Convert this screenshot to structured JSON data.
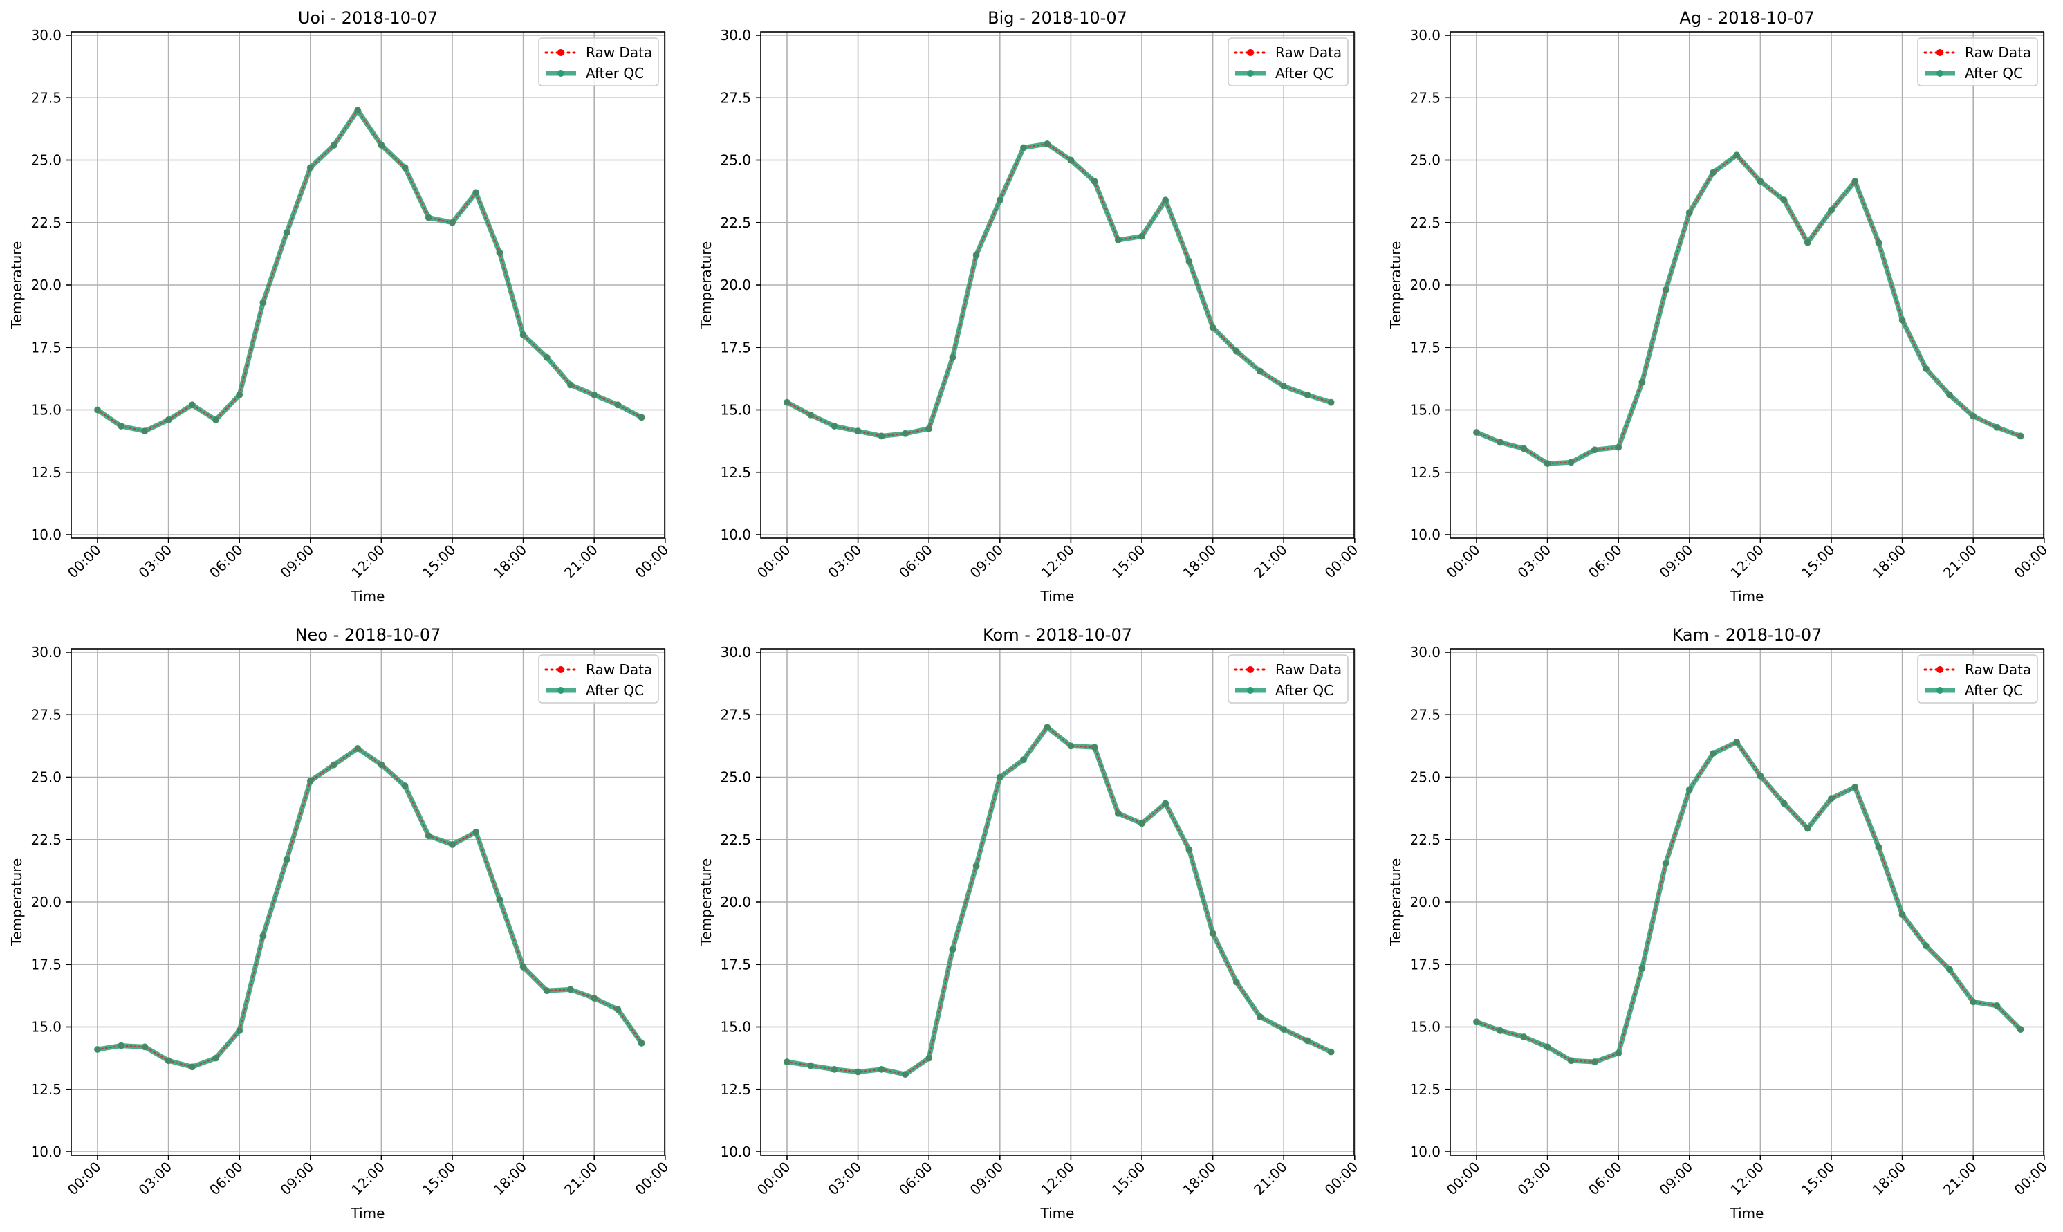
{
  "colors": {
    "raw": "#ff0000",
    "qc": "#2a9d76",
    "grid": "#b0b0b0",
    "legend_border": "#cccccc"
  },
  "legend": {
    "raw_label": "Raw Data",
    "qc_label": "After QC"
  },
  "chart_data": [
    {
      "type": "line",
      "title": "Uoi - 2018-10-07",
      "xlabel": "Time",
      "ylabel": "Temperature",
      "ylim": [
        10.0,
        30.0
      ],
      "yticks": [
        "10.0",
        "12.5",
        "15.0",
        "17.5",
        "20.0",
        "22.5",
        "25.0",
        "27.5",
        "30.0"
      ],
      "xticks": [
        "00:00",
        "03:00",
        "06:00",
        "09:00",
        "12:00",
        "15:00",
        "18:00",
        "21:00",
        "00:00"
      ],
      "grid": true,
      "legend_position": "upper right",
      "x": [
        "00:00",
        "01:00",
        "02:00",
        "03:00",
        "04:00",
        "05:00",
        "06:00",
        "07:00",
        "08:00",
        "09:00",
        "10:00",
        "11:00",
        "12:00",
        "13:00",
        "14:00",
        "15:00",
        "16:00",
        "17:00",
        "18:00",
        "19:00",
        "20:00",
        "21:00",
        "22:00",
        "23:00"
      ],
      "series": [
        {
          "name": "Raw Data",
          "values": [
            15.0,
            14.35,
            14.15,
            14.6,
            15.2,
            14.6,
            15.6,
            19.3,
            22.1,
            24.7,
            25.6,
            27.0,
            25.6,
            24.7,
            22.7,
            22.5,
            23.7,
            21.3,
            18.0,
            17.1,
            16.0,
            15.6,
            15.2,
            14.7
          ]
        },
        {
          "name": "After QC",
          "values": [
            15.0,
            14.35,
            14.15,
            14.6,
            15.2,
            14.6,
            15.6,
            19.3,
            22.1,
            24.7,
            25.6,
            27.0,
            25.6,
            24.7,
            22.7,
            22.5,
            23.7,
            21.3,
            18.0,
            17.1,
            16.0,
            15.6,
            15.2,
            14.7
          ]
        }
      ]
    },
    {
      "type": "line",
      "title": "Big - 2018-10-07",
      "xlabel": "Time",
      "ylabel": "Temperature",
      "ylim": [
        10.0,
        30.0
      ],
      "yticks": [
        "10.0",
        "12.5",
        "15.0",
        "17.5",
        "20.0",
        "22.5",
        "25.0",
        "27.5",
        "30.0"
      ],
      "xticks": [
        "00:00",
        "03:00",
        "06:00",
        "09:00",
        "12:00",
        "15:00",
        "18:00",
        "21:00",
        "00:00"
      ],
      "grid": true,
      "legend_position": "upper right",
      "x": [
        "00:00",
        "01:00",
        "02:00",
        "03:00",
        "04:00",
        "05:00",
        "06:00",
        "07:00",
        "08:00",
        "09:00",
        "10:00",
        "11:00",
        "12:00",
        "13:00",
        "14:00",
        "15:00",
        "16:00",
        "17:00",
        "18:00",
        "19:00",
        "20:00",
        "21:00",
        "22:00",
        "23:00"
      ],
      "series": [
        {
          "name": "Raw Data",
          "values": [
            15.3,
            14.8,
            14.35,
            14.15,
            13.95,
            14.05,
            14.25,
            17.1,
            21.2,
            23.4,
            25.5,
            25.65,
            25.0,
            24.15,
            21.8,
            21.95,
            23.4,
            20.95,
            18.3,
            17.35,
            16.55,
            15.95,
            15.6,
            15.3
          ]
        },
        {
          "name": "After QC",
          "values": [
            15.3,
            14.8,
            14.35,
            14.15,
            13.95,
            14.05,
            14.25,
            17.1,
            21.2,
            23.4,
            25.5,
            25.65,
            25.0,
            24.15,
            21.8,
            21.95,
            23.4,
            20.95,
            18.3,
            17.35,
            16.55,
            15.95,
            15.6,
            15.3
          ]
        }
      ]
    },
    {
      "type": "line",
      "title": "Ag - 2018-10-07",
      "xlabel": "Time",
      "ylabel": "Temperature",
      "ylim": [
        10.0,
        30.0
      ],
      "yticks": [
        "10.0",
        "12.5",
        "15.0",
        "17.5",
        "20.0",
        "22.5",
        "25.0",
        "27.5",
        "30.0"
      ],
      "xticks": [
        "00:00",
        "03:00",
        "06:00",
        "09:00",
        "12:00",
        "15:00",
        "18:00",
        "21:00",
        "00:00"
      ],
      "grid": true,
      "legend_position": "upper right",
      "x": [
        "00:00",
        "01:00",
        "02:00",
        "03:00",
        "04:00",
        "05:00",
        "06:00",
        "07:00",
        "08:00",
        "09:00",
        "10:00",
        "11:00",
        "12:00",
        "13:00",
        "14:00",
        "15:00",
        "16:00",
        "17:00",
        "18:00",
        "19:00",
        "20:00",
        "21:00",
        "22:00",
        "23:00"
      ],
      "series": [
        {
          "name": "Raw Data",
          "values": [
            14.1,
            13.7,
            13.45,
            12.85,
            12.9,
            13.4,
            13.5,
            16.1,
            19.8,
            22.9,
            24.5,
            25.2,
            24.15,
            23.4,
            21.7,
            23.0,
            24.15,
            21.7,
            18.6,
            16.65,
            15.6,
            14.75,
            14.3,
            13.95
          ]
        },
        {
          "name": "After QC",
          "values": [
            14.1,
            13.7,
            13.45,
            12.85,
            12.9,
            13.4,
            13.5,
            16.1,
            19.8,
            22.9,
            24.5,
            25.2,
            24.15,
            23.4,
            21.7,
            23.0,
            24.15,
            21.7,
            18.6,
            16.65,
            15.6,
            14.75,
            14.3,
            13.95
          ]
        }
      ]
    },
    {
      "type": "line",
      "title": "Neo - 2018-10-07",
      "xlabel": "Time",
      "ylabel": "Temperature",
      "ylim": [
        10.0,
        30.0
      ],
      "yticks": [
        "10.0",
        "12.5",
        "15.0",
        "17.5",
        "20.0",
        "22.5",
        "25.0",
        "27.5",
        "30.0"
      ],
      "xticks": [
        "00:00",
        "03:00",
        "06:00",
        "09:00",
        "12:00",
        "15:00",
        "18:00",
        "21:00",
        "00:00"
      ],
      "grid": true,
      "legend_position": "upper right",
      "x": [
        "00:00",
        "01:00",
        "02:00",
        "03:00",
        "04:00",
        "05:00",
        "06:00",
        "07:00",
        "08:00",
        "09:00",
        "10:00",
        "11:00",
        "12:00",
        "13:00",
        "14:00",
        "15:00",
        "16:00",
        "17:00",
        "18:00",
        "19:00",
        "20:00",
        "21:00",
        "22:00",
        "23:00"
      ],
      "series": [
        {
          "name": "Raw Data",
          "values": [
            14.1,
            14.25,
            14.2,
            13.65,
            13.4,
            13.75,
            14.85,
            18.65,
            21.7,
            24.85,
            25.5,
            26.15,
            25.5,
            24.65,
            22.65,
            22.3,
            22.8,
            20.1,
            17.4,
            16.45,
            16.5,
            16.15,
            15.7,
            14.35
          ]
        },
        {
          "name": "After QC",
          "values": [
            14.1,
            14.25,
            14.2,
            13.65,
            13.4,
            13.75,
            14.85,
            18.65,
            21.7,
            24.85,
            25.5,
            26.15,
            25.5,
            24.65,
            22.65,
            22.3,
            22.8,
            20.1,
            17.4,
            16.45,
            16.5,
            16.15,
            15.7,
            14.35
          ]
        }
      ]
    },
    {
      "type": "line",
      "title": "Kom - 2018-10-07",
      "xlabel": "Time",
      "ylabel": "Temperature",
      "ylim": [
        10.0,
        30.0
      ],
      "yticks": [
        "10.0",
        "12.5",
        "15.0",
        "17.5",
        "20.0",
        "22.5",
        "25.0",
        "27.5",
        "30.0"
      ],
      "xticks": [
        "00:00",
        "03:00",
        "06:00",
        "09:00",
        "12:00",
        "15:00",
        "18:00",
        "21:00",
        "00:00"
      ],
      "grid": true,
      "legend_position": "upper right",
      "x": [
        "00:00",
        "01:00",
        "02:00",
        "03:00",
        "04:00",
        "05:00",
        "06:00",
        "07:00",
        "08:00",
        "09:00",
        "10:00",
        "11:00",
        "12:00",
        "13:00",
        "14:00",
        "15:00",
        "16:00",
        "17:00",
        "18:00",
        "19:00",
        "20:00",
        "21:00",
        "22:00",
        "23:00"
      ],
      "series": [
        {
          "name": "Raw Data",
          "values": [
            13.6,
            13.45,
            13.3,
            13.2,
            13.3,
            13.1,
            13.75,
            18.1,
            21.45,
            25.0,
            25.7,
            27.0,
            26.25,
            26.2,
            23.55,
            23.15,
            23.95,
            22.1,
            18.75,
            16.8,
            15.4,
            14.9,
            14.45,
            14.0
          ]
        },
        {
          "name": "After QC",
          "values": [
            13.6,
            13.45,
            13.3,
            13.2,
            13.3,
            13.1,
            13.75,
            18.1,
            21.45,
            25.0,
            25.7,
            27.0,
            26.25,
            26.2,
            23.55,
            23.15,
            23.95,
            22.1,
            18.75,
            16.8,
            15.4,
            14.9,
            14.45,
            14.0
          ]
        }
      ]
    },
    {
      "type": "line",
      "title": "Kam - 2018-10-07",
      "xlabel": "Time",
      "ylabel": "Temperature",
      "ylim": [
        10.0,
        30.0
      ],
      "yticks": [
        "10.0",
        "12.5",
        "15.0",
        "17.5",
        "20.0",
        "22.5",
        "25.0",
        "27.5",
        "30.0"
      ],
      "xticks": [
        "00:00",
        "03:00",
        "06:00",
        "09:00",
        "12:00",
        "15:00",
        "18:00",
        "21:00",
        "00:00"
      ],
      "grid": true,
      "legend_position": "upper right",
      "x": [
        "00:00",
        "01:00",
        "02:00",
        "03:00",
        "04:00",
        "05:00",
        "06:00",
        "07:00",
        "08:00",
        "09:00",
        "10:00",
        "11:00",
        "12:00",
        "13:00",
        "14:00",
        "15:00",
        "16:00",
        "17:00",
        "18:00",
        "19:00",
        "20:00",
        "21:00",
        "22:00",
        "23:00"
      ],
      "series": [
        {
          "name": "Raw Data",
          "values": [
            15.2,
            14.85,
            14.6,
            14.2,
            13.65,
            13.6,
            13.95,
            17.35,
            21.55,
            24.5,
            25.95,
            26.4,
            25.05,
            23.95,
            22.95,
            24.15,
            24.6,
            22.2,
            19.5,
            18.25,
            17.3,
            16.0,
            15.85,
            14.9
          ]
        },
        {
          "name": "After QC",
          "values": [
            15.2,
            14.85,
            14.6,
            14.2,
            13.65,
            13.6,
            13.95,
            17.35,
            21.55,
            24.5,
            25.95,
            26.4,
            25.05,
            23.95,
            22.95,
            24.15,
            24.6,
            22.2,
            19.5,
            18.25,
            17.3,
            16.0,
            15.85,
            14.9
          ]
        }
      ]
    }
  ]
}
